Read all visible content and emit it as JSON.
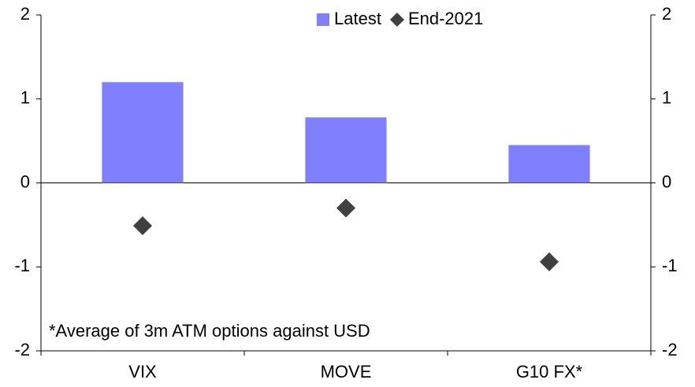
{
  "chart_data": {
    "type": "bar",
    "categories": [
      "VIX",
      "MOVE",
      "G10 FX*"
    ],
    "series": [
      {
        "name": "Latest",
        "type": "bar",
        "color": "#8080ff",
        "values": [
          1.2,
          0.78,
          0.45
        ]
      },
      {
        "name": "End-2021",
        "type": "scatter",
        "color": "#404040",
        "values": [
          -0.51,
          -0.3,
          -0.94
        ]
      }
    ],
    "ylim": [
      -2,
      2
    ],
    "yticks": [
      -2,
      -1,
      0,
      1,
      2
    ],
    "y2lim": [
      -2,
      2
    ],
    "y2ticks": [
      -2,
      -1,
      0,
      1,
      2
    ],
    "annotation": "*Average of 3m ATM options against USD",
    "legend": "top"
  }
}
